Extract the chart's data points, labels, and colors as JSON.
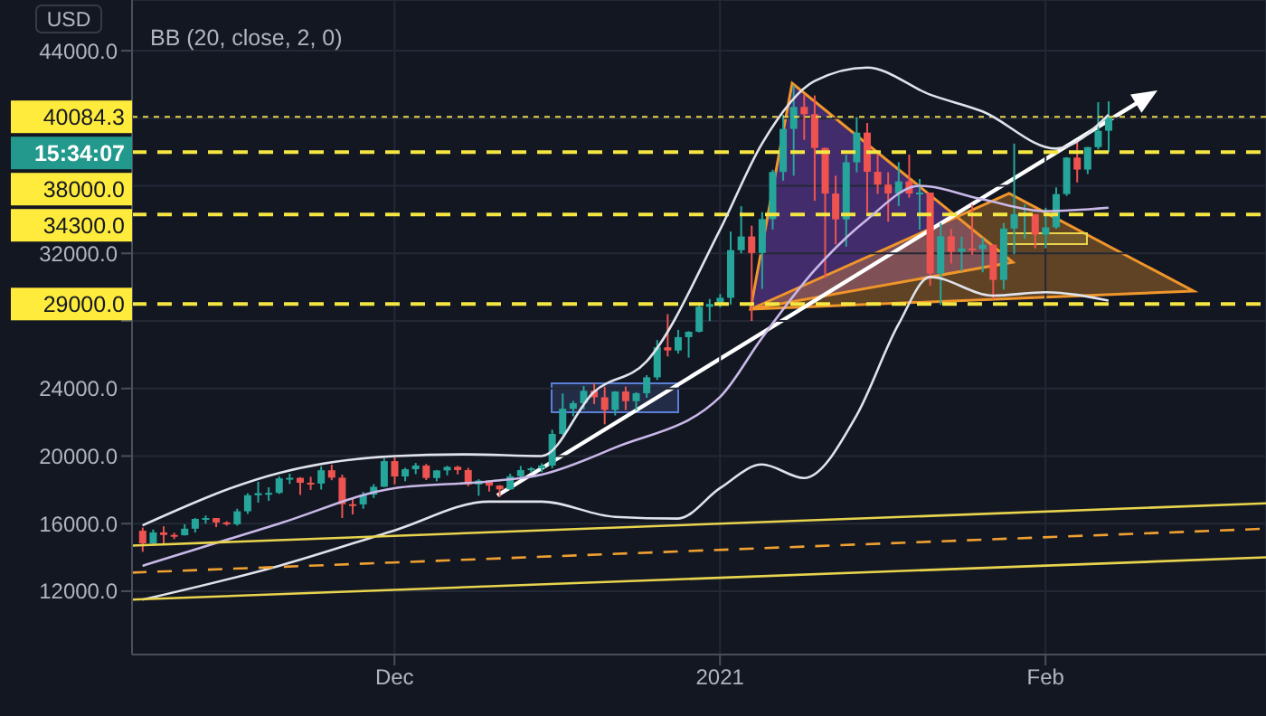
{
  "chart_data": {
    "type": "candlestick",
    "x": [
      "2020-11-07",
      "2020-11-08",
      "2020-11-09",
      "2020-11-10",
      "2020-11-11",
      "2020-11-12",
      "2020-11-13",
      "2020-11-14",
      "2020-11-15",
      "2020-11-16",
      "2020-11-17",
      "2020-11-18",
      "2020-11-19",
      "2020-11-20",
      "2020-11-21",
      "2020-11-22",
      "2020-11-23",
      "2020-11-24",
      "2020-11-25",
      "2020-11-26",
      "2020-11-27",
      "2020-11-28",
      "2020-11-29",
      "2020-11-30",
      "2020-12-01",
      "2020-12-02",
      "2020-12-03",
      "2020-12-04",
      "2020-12-05",
      "2020-12-06",
      "2020-12-07",
      "2020-12-08",
      "2020-12-09",
      "2020-12-10",
      "2020-12-11",
      "2020-12-12",
      "2020-12-13",
      "2020-12-14",
      "2020-12-15",
      "2020-12-16",
      "2020-12-17",
      "2020-12-18",
      "2020-12-19",
      "2020-12-20",
      "2020-12-21",
      "2020-12-22",
      "2020-12-23",
      "2020-12-24",
      "2020-12-25",
      "2020-12-26",
      "2020-12-27",
      "2020-12-28",
      "2020-12-29",
      "2020-12-30",
      "2020-12-31",
      "2021-01-01",
      "2021-01-02",
      "2021-01-03",
      "2021-01-04",
      "2021-01-05",
      "2021-01-06",
      "2021-01-07",
      "2021-01-08",
      "2021-01-09",
      "2021-01-10",
      "2021-01-11",
      "2021-01-12",
      "2021-01-13",
      "2021-01-14",
      "2021-01-15",
      "2021-01-16",
      "2021-01-17",
      "2021-01-18",
      "2021-01-19",
      "2021-01-20",
      "2021-01-21",
      "2021-01-22",
      "2021-01-23",
      "2021-01-24",
      "2021-01-25",
      "2021-01-26",
      "2021-01-27",
      "2021-01-28",
      "2021-01-29",
      "2021-01-30",
      "2021-01-31",
      "2021-02-01",
      "2021-02-02",
      "2021-02-03",
      "2021-02-04",
      "2021-02-05",
      "2021-02-06",
      "2021-02-07"
    ],
    "ohlc": [
      [
        15580,
        15770,
        14330,
        14830
      ],
      [
        14830,
        15650,
        14720,
        15480
      ],
      [
        15480,
        15840,
        14800,
        15330
      ],
      [
        15330,
        15460,
        15080,
        15310
      ],
      [
        15310,
        15960,
        15300,
        15700
      ],
      [
        15700,
        16330,
        15470,
        16280
      ],
      [
        16280,
        16480,
        15990,
        16330
      ],
      [
        16330,
        16330,
        15790,
        16070
      ],
      [
        16070,
        16140,
        15880,
        15960
      ],
      [
        15960,
        16880,
        15880,
        16730
      ],
      [
        16730,
        17800,
        16570,
        17680
      ],
      [
        17680,
        18480,
        17240,
        17800
      ],
      [
        17800,
        18150,
        17350,
        17820
      ],
      [
        17820,
        18800,
        17760,
        18680
      ],
      [
        18680,
        18960,
        18350,
        18710
      ],
      [
        18710,
        18750,
        17700,
        18420
      ],
      [
        18420,
        18770,
        18000,
        18370
      ],
      [
        18370,
        19390,
        18020,
        19160
      ],
      [
        19160,
        19490,
        18570,
        18720
      ],
      [
        18720,
        18900,
        16330,
        17150
      ],
      [
        17150,
        17460,
        16540,
        17140
      ],
      [
        17140,
        17880,
        16880,
        17720
      ],
      [
        17720,
        18340,
        17520,
        18180
      ],
      [
        18180,
        19860,
        18180,
        19700
      ],
      [
        19700,
        19920,
        18330,
        18790
      ],
      [
        18790,
        19310,
        18510,
        19220
      ],
      [
        19220,
        19590,
        18930,
        19440
      ],
      [
        19440,
        19530,
        18580,
        18700
      ],
      [
        18700,
        19180,
        18510,
        19150
      ],
      [
        19150,
        19420,
        18860,
        19360
      ],
      [
        19360,
        19420,
        18920,
        19170
      ],
      [
        19170,
        19300,
        18210,
        18320
      ],
      [
        18320,
        18630,
        17650,
        18550
      ],
      [
        18550,
        18560,
        17900,
        18250
      ],
      [
        18250,
        18280,
        17570,
        18030
      ],
      [
        18030,
        18950,
        18000,
        18800
      ],
      [
        18800,
        19410,
        18710,
        19170
      ],
      [
        19170,
        19350,
        19000,
        19270
      ],
      [
        19270,
        19570,
        19050,
        19440
      ],
      [
        19440,
        21560,
        19280,
        21310
      ],
      [
        21310,
        23700,
        21240,
        22800
      ],
      [
        22800,
        23270,
        22350,
        23130
      ],
      [
        23130,
        24140,
        22770,
        23860
      ],
      [
        23860,
        24300,
        23080,
        23480
      ],
      [
        23480,
        24100,
        21880,
        22730
      ],
      [
        22730,
        23840,
        22400,
        23820
      ],
      [
        23820,
        24110,
        22720,
        23250
      ],
      [
        23250,
        23780,
        22700,
        23720
      ],
      [
        23720,
        24790,
        23450,
        24660
      ],
      [
        24660,
        26870,
        24500,
        26440
      ],
      [
        26440,
        28400,
        25900,
        26250
      ],
      [
        26250,
        27470,
        26070,
        27040
      ],
      [
        27040,
        27390,
        25830,
        27360
      ],
      [
        27360,
        28990,
        27320,
        28840
      ],
      [
        28840,
        29300,
        27990,
        29000
      ],
      [
        29000,
        29600,
        28800,
        29370
      ],
      [
        29370,
        33290,
        28960,
        32190
      ],
      [
        32190,
        34790,
        32000,
        33000
      ],
      [
        33000,
        33640,
        28000,
        32020
      ],
      [
        32020,
        34440,
        29900,
        34030
      ],
      [
        34030,
        36950,
        33410,
        36820
      ],
      [
        36820,
        40200,
        36300,
        39370
      ],
      [
        39370,
        41950,
        36600,
        40670
      ],
      [
        40670,
        41380,
        38720,
        40240
      ],
      [
        40240,
        41350,
        35110,
        38240
      ],
      [
        38240,
        38260,
        30550,
        35540
      ],
      [
        35540,
        36600,
        32530,
        34010
      ],
      [
        34010,
        37830,
        32400,
        37390
      ],
      [
        37390,
        40070,
        36800,
        39150
      ],
      [
        39150,
        39720,
        34420,
        36830
      ],
      [
        36830,
        37900,
        35520,
        36070
      ],
      [
        36070,
        36800,
        33870,
        35550
      ],
      [
        35550,
        37400,
        34800,
        36260
      ],
      [
        36260,
        37850,
        35300,
        35540
      ],
      [
        35540,
        36400,
        33400,
        35600
      ],
      [
        35600,
        35600,
        30080,
        30810
      ],
      [
        30810,
        33800,
        28950,
        33010
      ],
      [
        33010,
        33440,
        31400,
        32100
      ],
      [
        32100,
        32990,
        30940,
        32290
      ],
      [
        32290,
        34880,
        31920,
        32250
      ],
      [
        32250,
        32920,
        30880,
        32510
      ],
      [
        32510,
        32520,
        29280,
        30430
      ],
      [
        30430,
        33800,
        29860,
        33470
      ],
      [
        33470,
        38500,
        31950,
        34320
      ],
      [
        34320,
        34900,
        32870,
        34320
      ],
      [
        34320,
        34320,
        32300,
        33110
      ],
      [
        33110,
        34700,
        32300,
        33540
      ],
      [
        33540,
        35900,
        33450,
        35510
      ],
      [
        35510,
        37700,
        35400,
        37670
      ],
      [
        37670,
        38700,
        36200,
        36960
      ],
      [
        36960,
        38300,
        36700,
        38290
      ],
      [
        38290,
        40950,
        38150,
        39260
      ],
      [
        39260,
        41000,
        38000,
        40084.3
      ]
    ],
    "series": [
      {
        "type": "line",
        "color": "#e0e3eb",
        "line_style": "solid",
        "x": [
          "2020-11-07",
          "2020-11-20",
          "2020-12-01",
          "2020-12-08",
          "2020-12-15",
          "2020-12-20",
          "2020-12-25",
          "2021-01-01",
          "2021-01-05",
          "2021-01-10",
          "2021-01-15",
          "2021-01-21",
          "2021-01-26",
          "2021-02-02",
          "2021-02-07"
        ],
        "values": [
          15900,
          19000,
          20000,
          20100,
          20000,
          23800,
          25600,
          33400,
          38500,
          42200,
          43000,
          41400,
          40400,
          38200,
          40200
        ]
      },
      {
        "type": "line",
        "color": "#c9b8e8",
        "line_style": "solid",
        "x": [
          "2020-11-07",
          "2020-11-20",
          "2020-12-01",
          "2020-12-10",
          "2020-12-15",
          "2020-12-22",
          "2021-01-01",
          "2021-01-05",
          "2021-01-10",
          "2021-01-15",
          "2021-01-20",
          "2021-01-26",
          "2021-02-01",
          "2021-02-07"
        ],
        "values": [
          13500,
          16000,
          18100,
          18500,
          18900,
          20500,
          23500,
          27000,
          31000,
          34000,
          36000,
          35200,
          34500,
          34700
        ]
      },
      {
        "type": "line",
        "color": "#e0e3eb",
        "line_style": "solid",
        "x": [
          "2020-11-07",
          "2020-11-20",
          "2020-12-01",
          "2020-12-10",
          "2020-12-15",
          "2020-12-22",
          "2020-12-28",
          "2021-01-01",
          "2021-01-05",
          "2021-01-09",
          "2021-01-14",
          "2021-01-18",
          "2021-01-21",
          "2021-01-27",
          "2021-02-01",
          "2021-02-07"
        ],
        "values": [
          11500,
          13500,
          15600,
          17300,
          17300,
          16400,
          16300,
          18100,
          19500,
          18700,
          22400,
          27800,
          30600,
          29500,
          29700,
          29200
        ]
      },
      {
        "type": "line",
        "color": "#e8d44d",
        "line_style": "solid",
        "x": [
          "2020-11-06",
          "2021-02-22"
        ],
        "values": [
          14700,
          17200
        ]
      },
      {
        "type": "line",
        "color": "#f0a030",
        "line_style": "dashed",
        "x": [
          "2020-11-06",
          "2021-02-22"
        ],
        "values": [
          13100,
          15700
        ]
      },
      {
        "type": "line",
        "color": "#e8d44d",
        "line_style": "solid",
        "x": [
          "2020-11-06",
          "2021-02-22"
        ],
        "values": [
          11500,
          14000
        ]
      }
    ],
    "xlim": [
      "2020-11-06",
      "2021-02-22"
    ],
    "xticks": [
      {
        "value": "2020-12-01",
        "label": "Dec"
      },
      {
        "value": "2021-01-01",
        "label": "2021"
      },
      {
        "value": "2021-02-01",
        "label": "Feb"
      }
    ],
    "ylim": [
      8250,
      47000
    ],
    "yticks": [
      {
        "value": 12000,
        "label": "12000.0"
      },
      {
        "value": 16000,
        "label": "16000.0"
      },
      {
        "value": 20000,
        "label": "20000.0"
      },
      {
        "value": 24000,
        "label": "24000.0"
      },
      {
        "value": 28000,
        "label": null
      },
      {
        "value": 32000,
        "label": "32000.0"
      },
      {
        "value": 36000,
        "label": null
      },
      {
        "value": 40000,
        "label": null
      },
      {
        "value": 44000,
        "label": "44000.0"
      }
    ],
    "ref_lines": [
      {
        "axis": "y",
        "value": 40084.3,
        "label": "40084.3",
        "color": "#e8d44d",
        "line_style": "dotted"
      },
      {
        "axis": "y",
        "value": 38000,
        "label": "38000.0",
        "color": "#f5e642",
        "line_style": "dashed"
      },
      {
        "axis": "y",
        "value": 34300,
        "label": "34300.0",
        "color": "#f5e642",
        "line_style": "dashed"
      },
      {
        "axis": "y",
        "value": 29000,
        "label": "29000.0",
        "color": "#f5e642",
        "line_style": "dashed"
      }
    ],
    "annotations": [
      "USD",
      "BB (20, close, 2, 0)",
      "15:34:07"
    ],
    "grid": true,
    "marker": "none"
  }
}
